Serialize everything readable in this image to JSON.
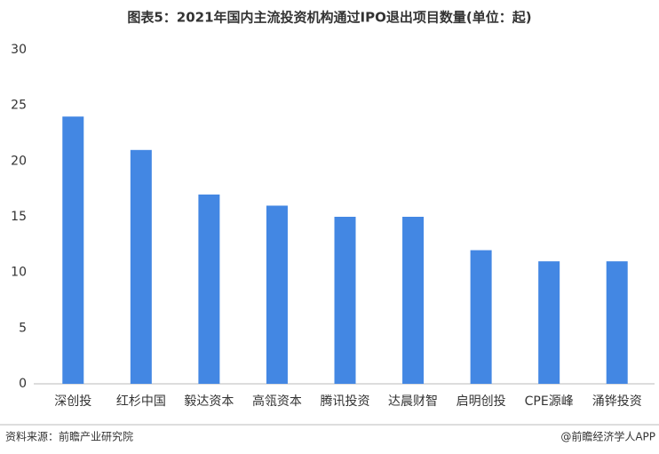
{
  "chart_data": {
    "type": "bar",
    "title": "图表5：2021年国内主流投资机构通过IPO退出项目数量(单位：起)",
    "categories": [
      "深创投",
      "红杉中国",
      "毅达资本",
      "高瓴资本",
      "腾讯投资",
      "达晨财智",
      "启明创投",
      "CPE源峰",
      "涌铧投资"
    ],
    "values": [
      24,
      21,
      17,
      16,
      15,
      15,
      12,
      11,
      11
    ],
    "color": "#4387e3",
    "ylim": [
      0,
      30
    ],
    "yticks": [
      0,
      5,
      10,
      15,
      20,
      25,
      30
    ],
    "grid": false,
    "source": "资料来源：前瞻产业研究院",
    "credit": "@前瞻经济学人APP"
  }
}
